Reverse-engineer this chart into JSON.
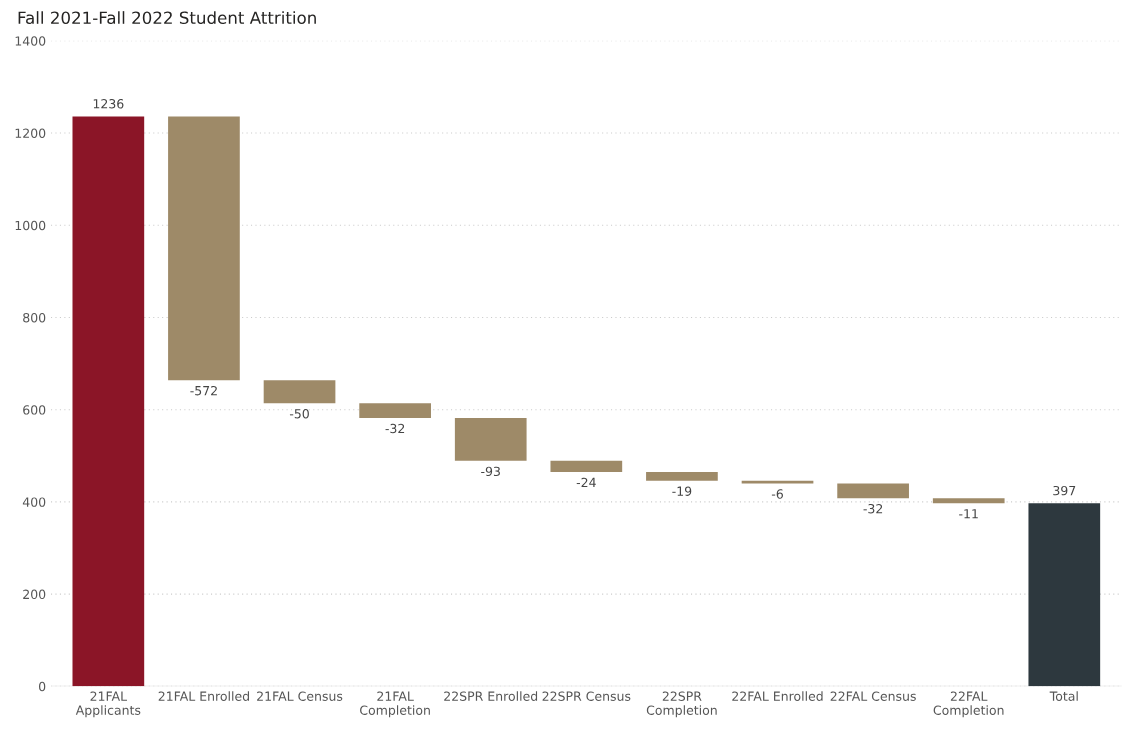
{
  "chart_data": {
    "type": "bar",
    "title": "Fall 2021-Fall 2022 Student Attrition",
    "categories": [
      "21FAL\nApplicants",
      "21FAL Enrolled",
      "21FAL Census",
      "21FAL\nCompletion",
      "22SPR Enrolled",
      "22SPR Census",
      "22SPR\nCompletion",
      "22FAL Enrolled",
      "22FAL Census",
      "22FAL\nCompletion",
      "Total"
    ],
    "values": [
      1236,
      -572,
      -50,
      -32,
      -93,
      -24,
      -19,
      -6,
      -32,
      -11,
      397
    ],
    "base": [
      0,
      1236,
      664,
      614,
      582,
      489,
      465,
      446,
      440,
      408,
      0
    ],
    "colors": [
      "#8b1527",
      "#9e8a68",
      "#9e8a68",
      "#9e8a68",
      "#9e8a68",
      "#9e8a68",
      "#9e8a68",
      "#9e8a68",
      "#9e8a68",
      "#9e8a68",
      "#2d383e"
    ],
    "ylim": [
      0,
      1400
    ],
    "yticks": [
      0,
      200,
      400,
      600,
      800,
      1000,
      1200,
      1400
    ],
    "grid": "y",
    "data_labels": true
  }
}
